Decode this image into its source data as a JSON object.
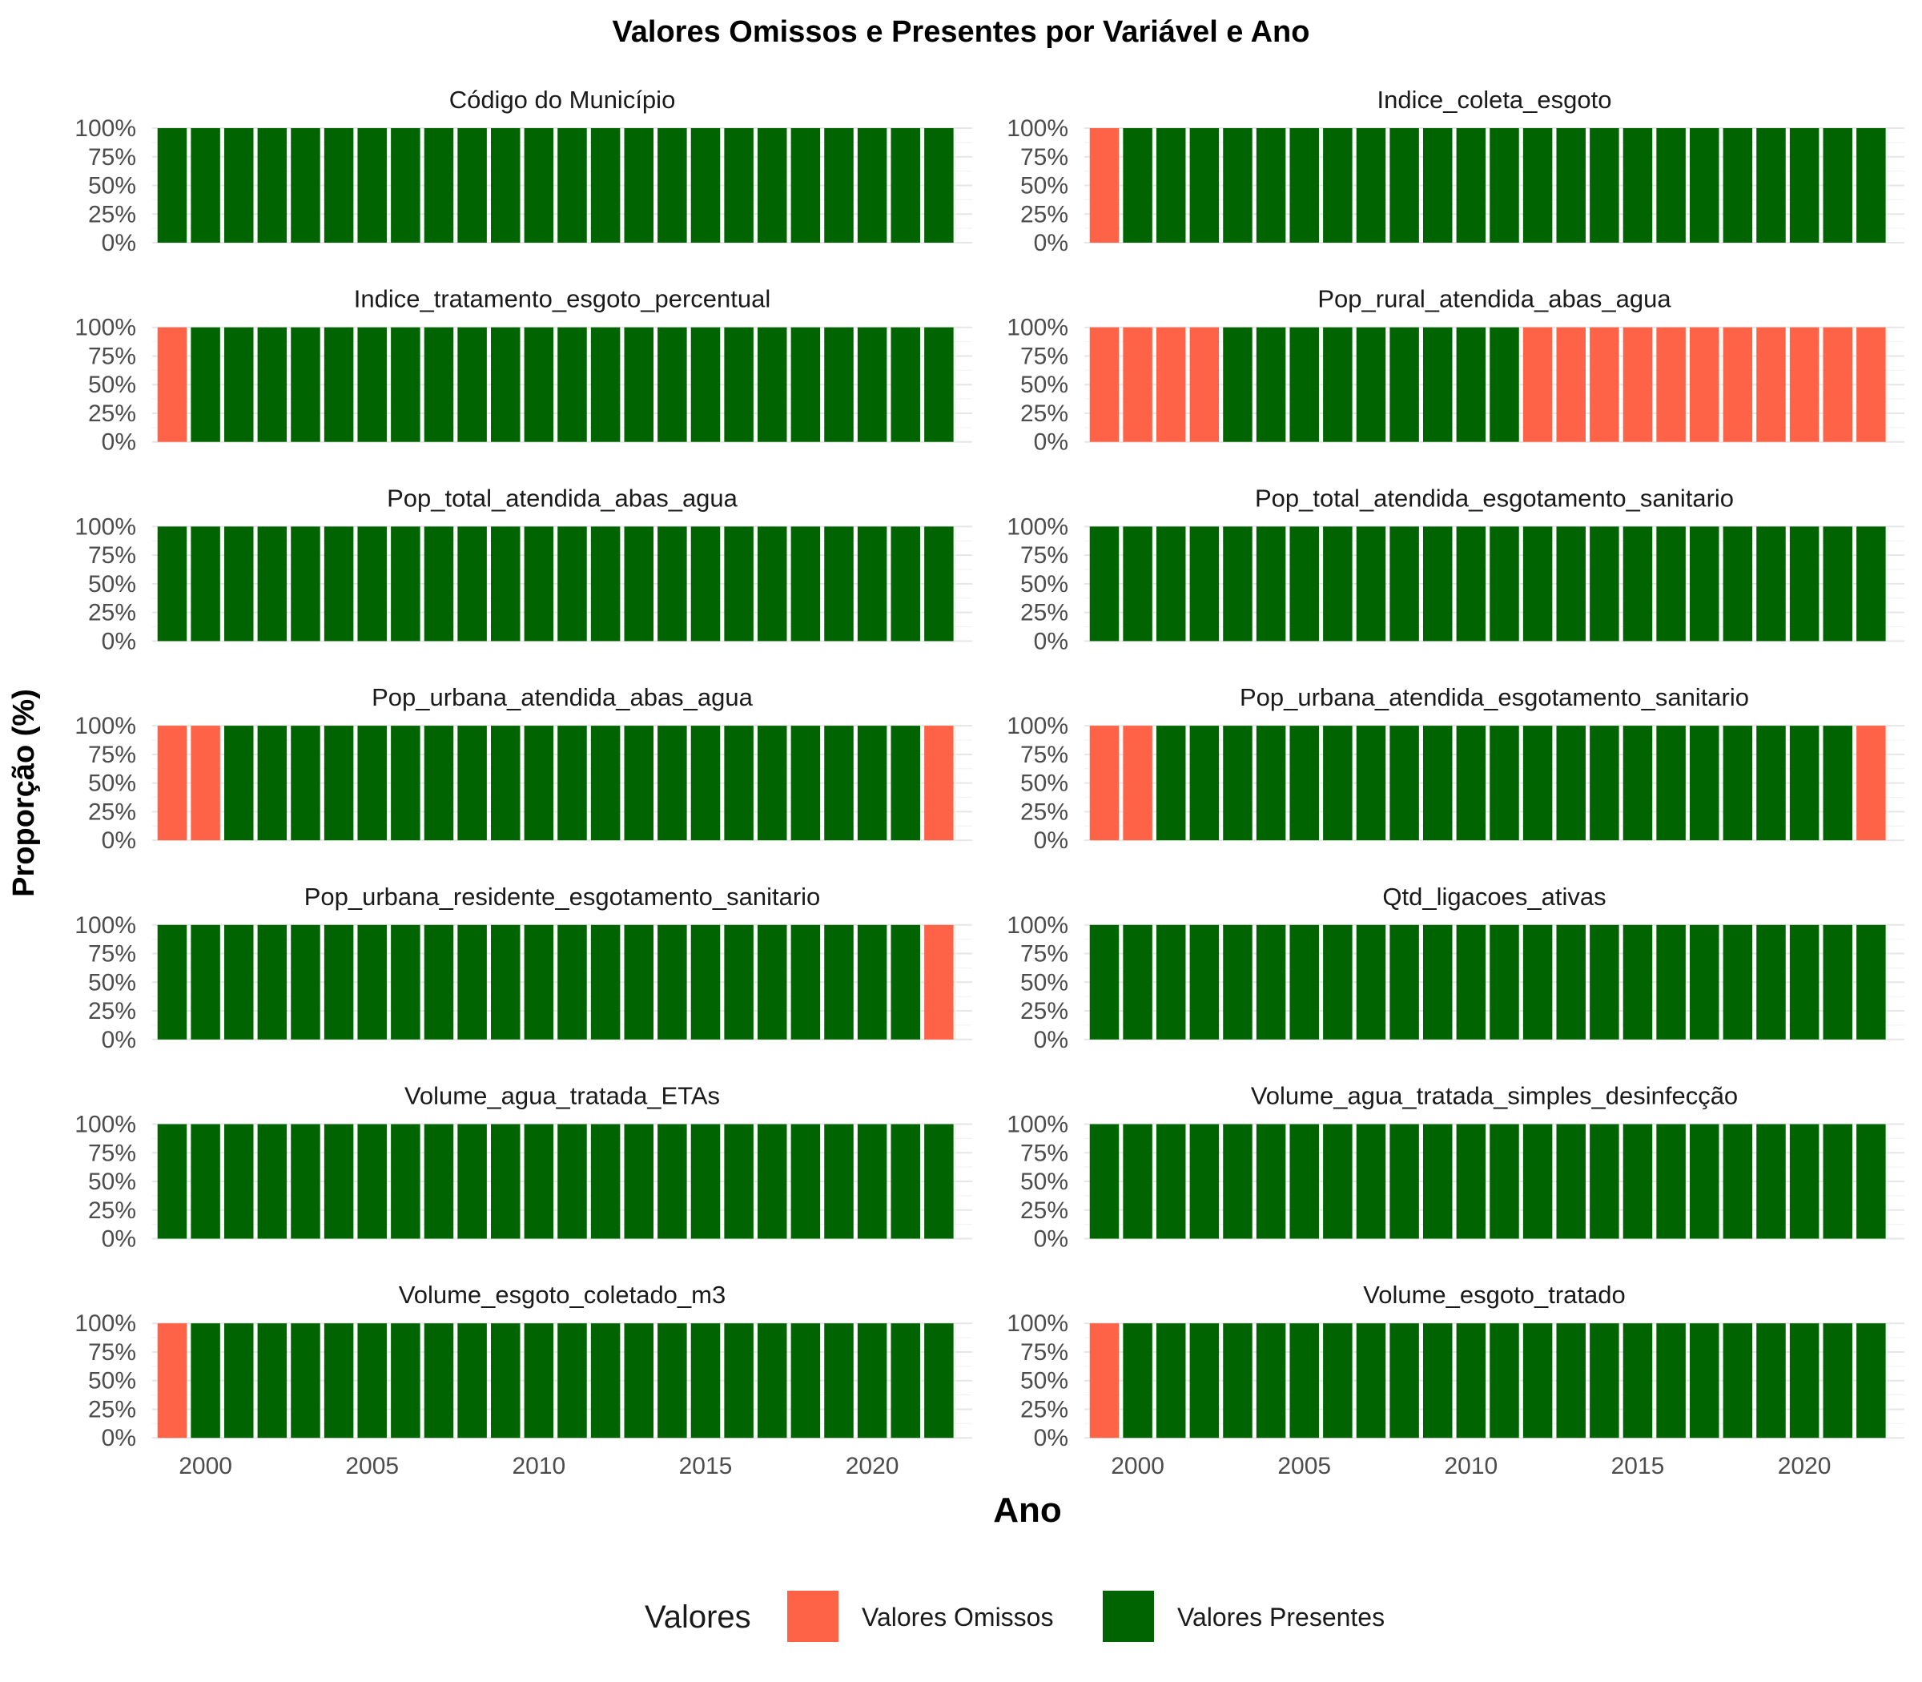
{
  "chart_data": {
    "type": "bar",
    "stacked": true,
    "facet_layout": "7 rows x 2 columns",
    "title": "Valores Omissos e Presentes por Variável e Ano",
    "xlabel": "Ano",
    "ylabel": "Proporção (%)",
    "x_range": [
      1999,
      2022
    ],
    "x_ticks": [
      "2000",
      "2005",
      "2010",
      "2015",
      "2020"
    ],
    "y_ticks": [
      "0%",
      "25%",
      "50%",
      "75%",
      "100%"
    ],
    "ylim": [
      0,
      1
    ],
    "grid": true,
    "legend": {
      "title": "Valores",
      "position": "bottom",
      "entries": [
        {
          "label": "Valores Omissos",
          "color": "#FF6347"
        },
        {
          "label": "Valores Presentes",
          "color": "#006400"
        }
      ]
    },
    "facets": [
      {
        "name": "Código do Município",
        "missing_years": []
      },
      {
        "name": "Indice_coleta_esgoto",
        "missing_years": [
          1999
        ]
      },
      {
        "name": "Indice_tratamento_esgoto_percentual",
        "missing_years": [
          1999
        ]
      },
      {
        "name": "Pop_rural_atendida_abas_agua",
        "missing_years": [
          1999,
          2000,
          2001,
          2002,
          2012,
          2013,
          2014,
          2015,
          2016,
          2017,
          2018,
          2019,
          2020,
          2021,
          2022
        ]
      },
      {
        "name": "Pop_total_atendida_abas_agua",
        "missing_years": []
      },
      {
        "name": "Pop_total_atendida_esgotamento_sanitario",
        "missing_years": []
      },
      {
        "name": "Pop_urbana_atendida_abas_agua",
        "missing_years": [
          1999,
          2000,
          2022
        ]
      },
      {
        "name": "Pop_urbana_atendida_esgotamento_sanitario",
        "missing_years": [
          1999,
          2000,
          2022
        ]
      },
      {
        "name": "Pop_urbana_residente_esgotamento_sanitario",
        "missing_years": [
          2022
        ]
      },
      {
        "name": "Qtd_ligacoes_ativas",
        "missing_years": []
      },
      {
        "name": "Volume_agua_tratada_ETAs",
        "missing_years": []
      },
      {
        "name": "Volume_agua_tratada_simples_desinfecção",
        "missing_years": []
      },
      {
        "name": "Volume_esgoto_coletado_m3",
        "missing_years": [
          1999
        ]
      },
      {
        "name": "Volume_esgoto_tratado",
        "missing_years": [
          1999
        ]
      }
    ]
  }
}
